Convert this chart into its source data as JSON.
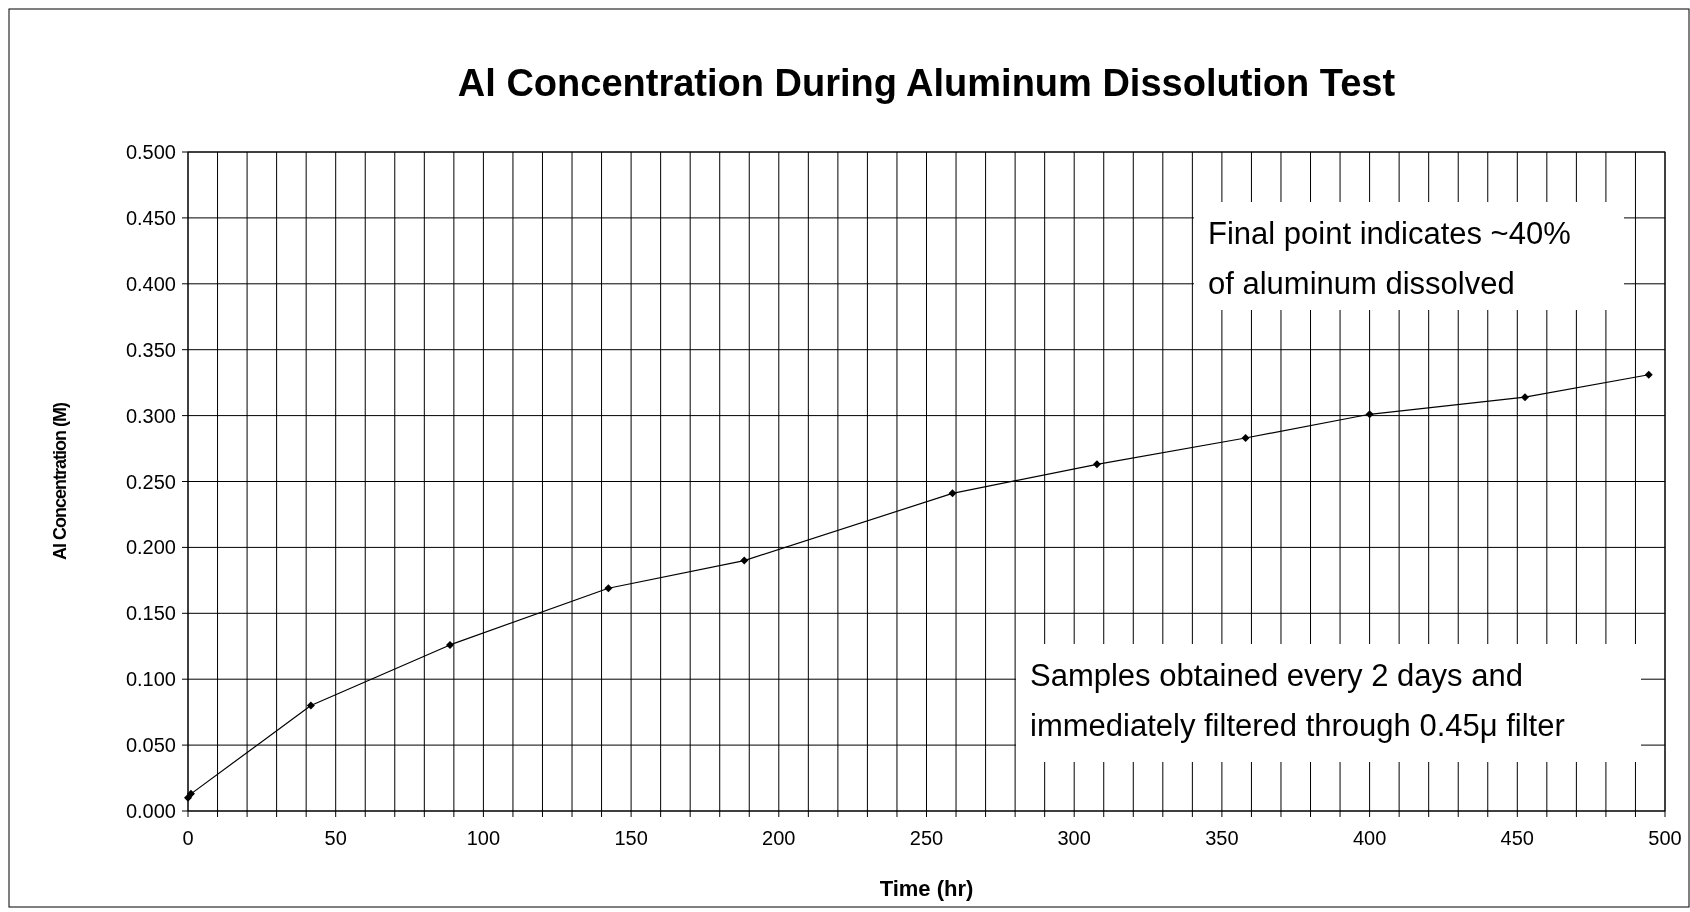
{
  "chart_data": {
    "type": "line",
    "title": "Al Concentration During Aluminum Dissolution Test",
    "xlabel": "Time (hr)",
    "ylabel": "Al Concentration (M)",
    "x": [
      0,
      1,
      41.6,
      88.7,
      142.3,
      188.3,
      258.8,
      307.7,
      358,
      400,
      452.6,
      494.5
    ],
    "series": [
      {
        "color": "#000000",
        "values": [
          0.01,
          0.013,
          0.08,
          0.126,
          0.169,
          0.19,
          0.241,
          0.263,
          0.283,
          0.301,
          0.314,
          0.331
        ]
      }
    ],
    "xlim": [
      0,
      500
    ],
    "xticks": [
      0,
      {
        "value": 10,
        "label": null
      },
      {
        "value": 20,
        "label": null
      },
      {
        "value": 30,
        "label": null
      },
      {
        "value": 40,
        "label": null
      },
      50,
      {
        "value": 60,
        "label": null
      },
      {
        "value": 70,
        "label": null
      },
      {
        "value": 80,
        "label": null
      },
      {
        "value": 90,
        "label": null
      },
      100,
      {
        "value": 110,
        "label": null
      },
      {
        "value": 120,
        "label": null
      },
      {
        "value": 130,
        "label": null
      },
      {
        "value": 140,
        "label": null
      },
      150,
      {
        "value": 160,
        "label": null
      },
      {
        "value": 170,
        "label": null
      },
      {
        "value": 180,
        "label": null
      },
      {
        "value": 190,
        "label": null
      },
      200,
      {
        "value": 210,
        "label": null
      },
      {
        "value": 220,
        "label": null
      },
      {
        "value": 230,
        "label": null
      },
      {
        "value": 240,
        "label": null
      },
      250,
      {
        "value": 260,
        "label": null
      },
      {
        "value": 270,
        "label": null
      },
      {
        "value": 280,
        "label": null
      },
      {
        "value": 290,
        "label": null
      },
      300,
      {
        "value": 310,
        "label": null
      },
      {
        "value": 320,
        "label": null
      },
      {
        "value": 330,
        "label": null
      },
      {
        "value": 340,
        "label": null
      },
      350,
      {
        "value": 360,
        "label": null
      },
      {
        "value": 370,
        "label": null
      },
      {
        "value": 380,
        "label": null
      },
      {
        "value": 390,
        "label": null
      },
      400,
      {
        "value": 410,
        "label": null
      },
      {
        "value": 420,
        "label": null
      },
      {
        "value": 430,
        "label": null
      },
      {
        "value": 440,
        "label": null
      },
      450,
      {
        "value": 460,
        "label": null
      },
      {
        "value": 470,
        "label": null
      },
      {
        "value": 480,
        "label": null
      },
      {
        "value": 490,
        "label": null
      },
      500
    ],
    "ylim": [
      0,
      0.5
    ],
    "yticks": [
      {
        "value": 0,
        "label": "0.000"
      },
      {
        "value": 0.05,
        "label": "0.050"
      },
      {
        "value": 0.1,
        "label": "0.100"
      },
      {
        "value": 0.15,
        "label": "0.150"
      },
      {
        "value": 0.2,
        "label": "0.200"
      },
      {
        "value": 0.25,
        "label": "0.250"
      },
      {
        "value": 0.3,
        "label": "0.300"
      },
      {
        "value": 0.35,
        "label": "0.350"
      },
      {
        "value": 0.4,
        "label": "0.400"
      },
      {
        "value": 0.45,
        "label": "0.450"
      },
      {
        "value": 0.5,
        "label": "0.500"
      }
    ],
    "grid": true,
    "marker": "diamond",
    "line_style": "solid",
    "annotations": [
      "Final point indicates ~40%\nof aluminum dissolved",
      "Samples obtained every 2 days and\nimmediately filtered through 0.45μ filter"
    ]
  }
}
